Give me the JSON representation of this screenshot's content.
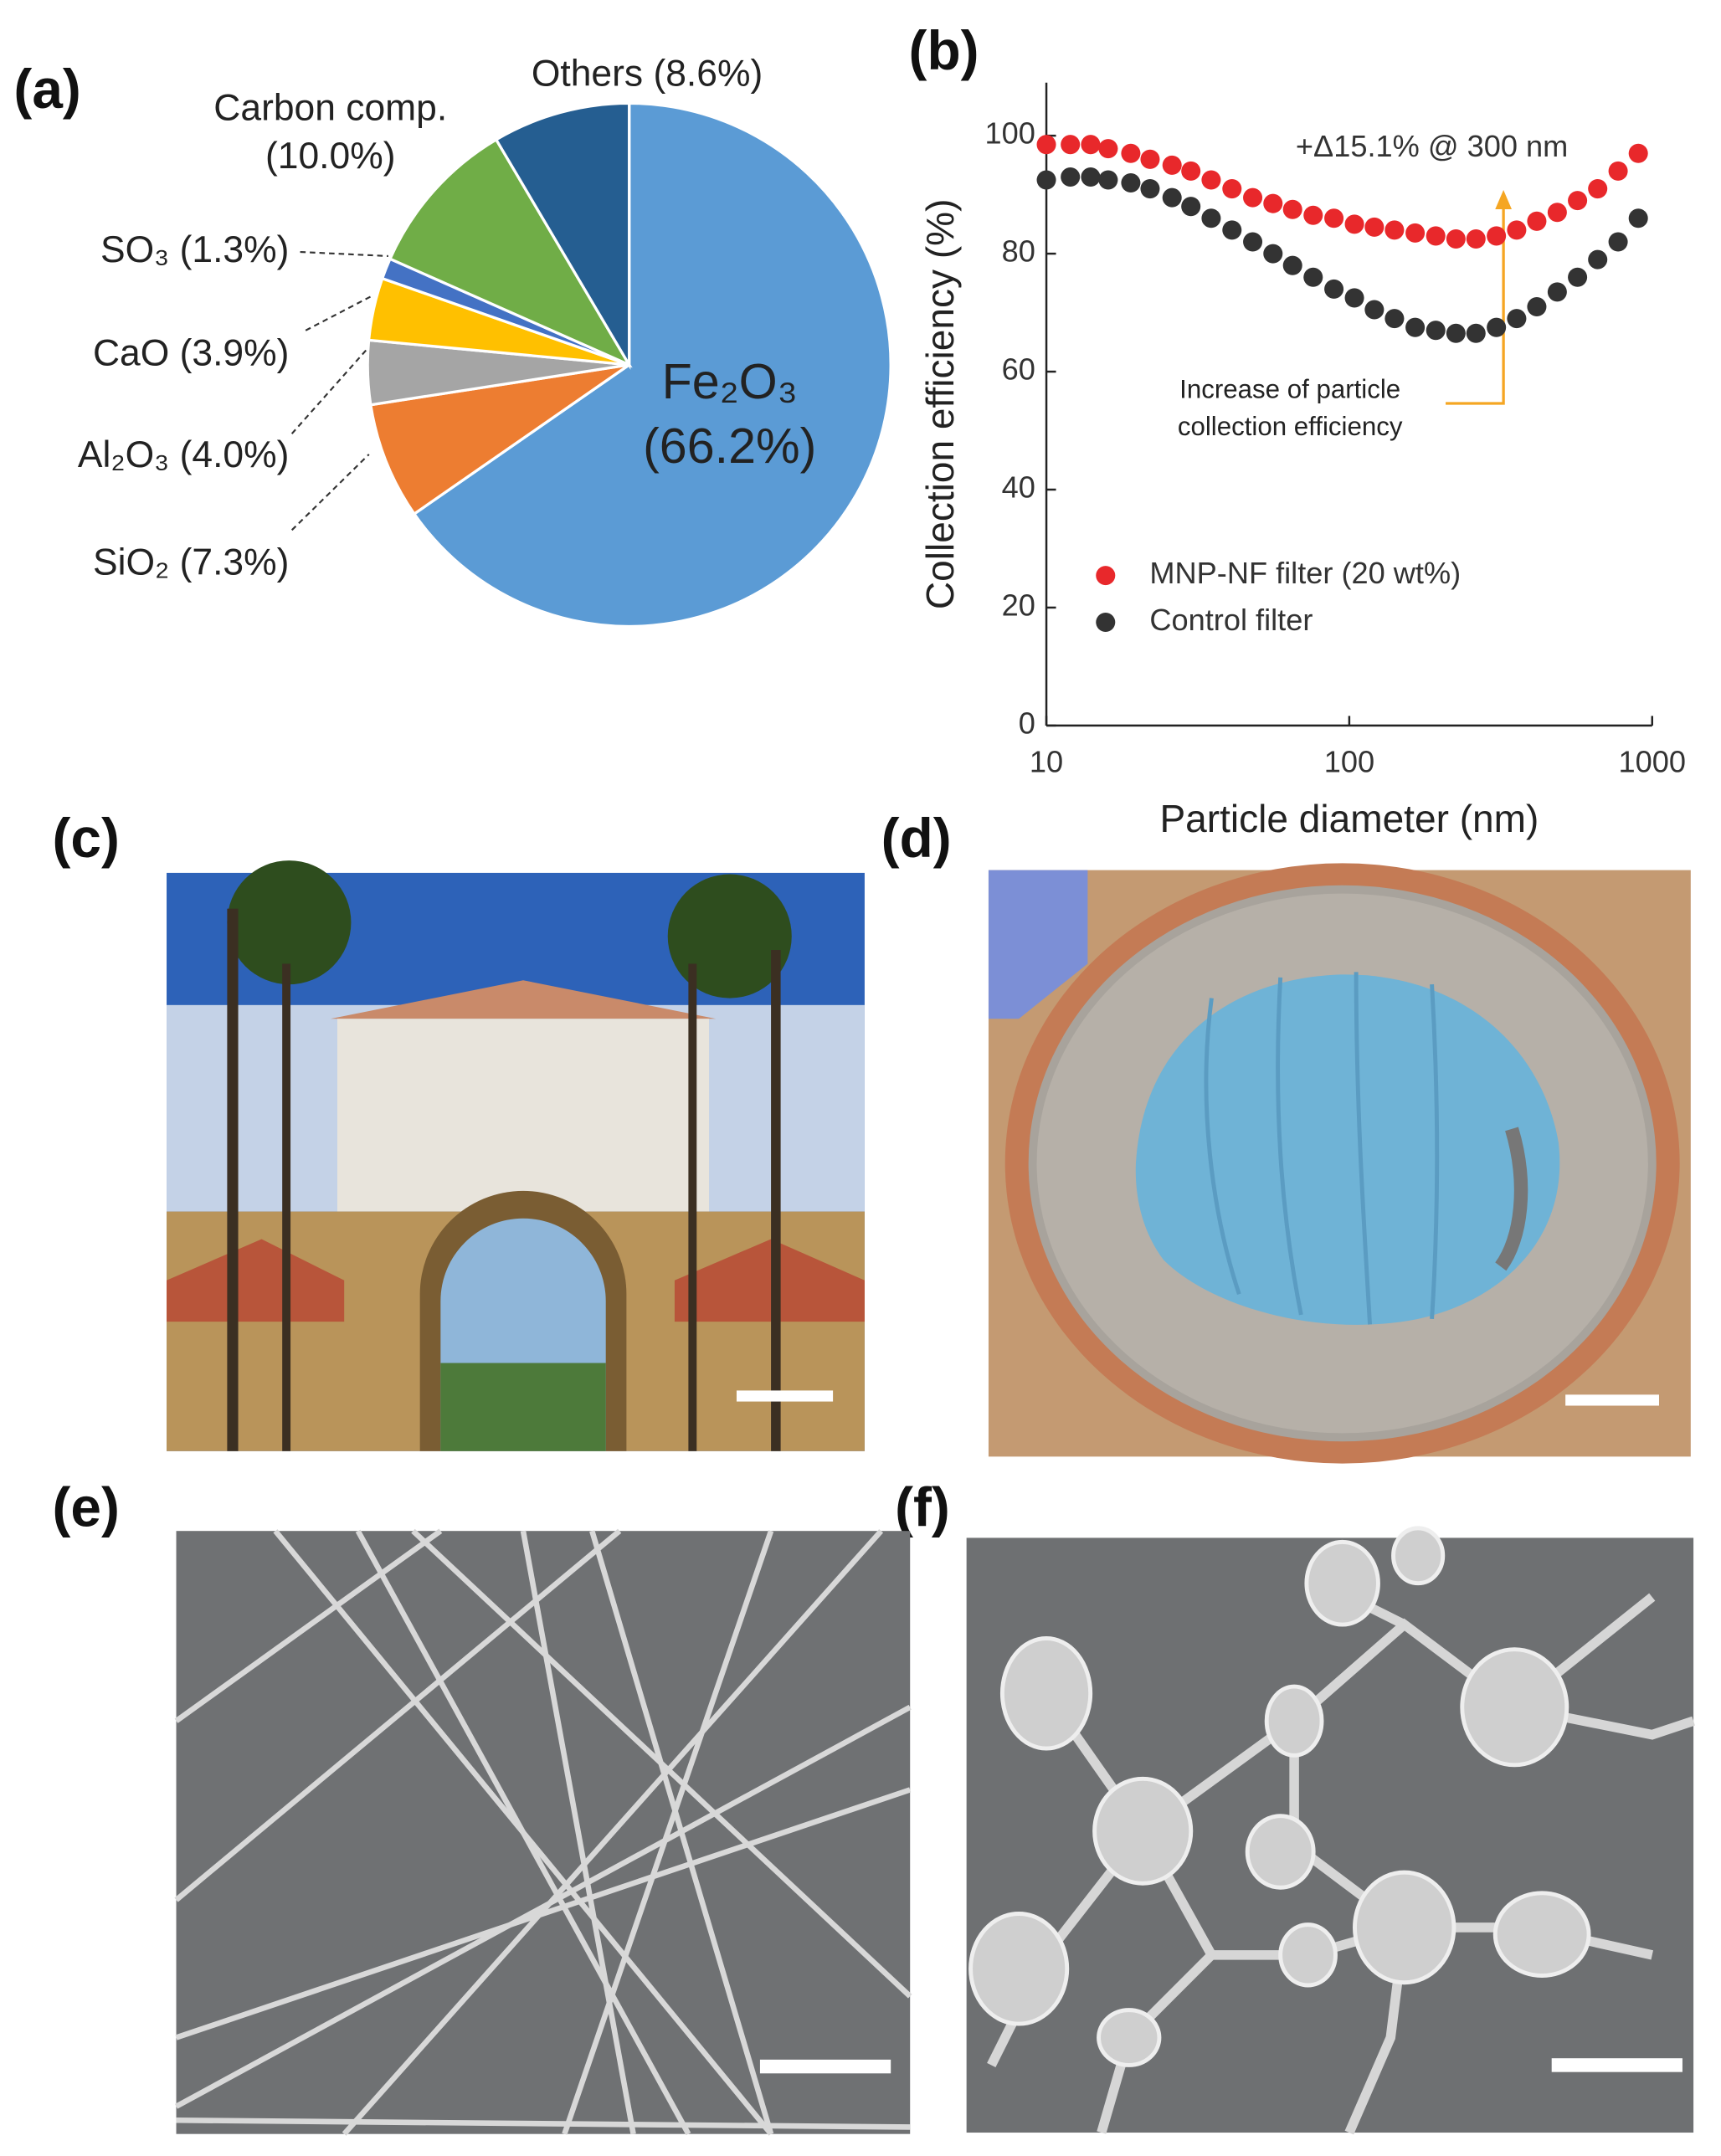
{
  "panel_labels": [
    "(a)",
    "(b)",
    "(c)",
    "(d)",
    "(e)",
    "(f)"
  ],
  "chart_data": [
    {
      "type": "pie",
      "labels": [
        "Fe₂O₃",
        "SiO₂",
        "Al₂O₃",
        "CaO",
        "SO₃",
        "Carbon comp.",
        "Others"
      ],
      "values": [
        66.2,
        7.3,
        4.0,
        3.9,
        1.3,
        10.0,
        8.6
      ],
      "value_labels": [
        "(66.2%)",
        "(7.3%)",
        "(4.0%)",
        "(3.9%)",
        "(1.3%)",
        "(10.0%)",
        "(8.6%)"
      ],
      "colors": [
        "#5b9bd5",
        "#ed7d31",
        "#a5a5a5",
        "#ffc000",
        "#4472c4",
        "#70ad47",
        "#255e91"
      ]
    },
    {
      "type": "scatter",
      "xlabel": "Particle diameter (nm)",
      "ylabel": "Collection efficiency (%)",
      "x": [
        10,
        12,
        14,
        16,
        19,
        22,
        26,
        30,
        35,
        41,
        48,
        56,
        65,
        76,
        89,
        104,
        121,
        141,
        165,
        193,
        225,
        262,
        306,
        357,
        416,
        486,
        567,
        661,
        772,
        900
      ],
      "series": [
        {
          "name": "MNP-NF filter (20 wt%)",
          "color": "#e8282b",
          "values": [
            98.5,
            98.5,
            98.5,
            97.8,
            97,
            96,
            95,
            94,
            92.5,
            91,
            89.5,
            88.5,
            87.5,
            86.5,
            86,
            85,
            84.5,
            84,
            83.5,
            83,
            82.5,
            82.5,
            83,
            84,
            85.5,
            87,
            89,
            91,
            94,
            97
          ]
        },
        {
          "name": "Control filter",
          "color": "#333333",
          "values": [
            92.5,
            93,
            93,
            92.5,
            92,
            91,
            89.5,
            88,
            86,
            84,
            82,
            80,
            78,
            76,
            74,
            72.5,
            70.5,
            69,
            67.5,
            67,
            66.5,
            66.5,
            67.5,
            69,
            71,
            73.5,
            76,
            79,
            82,
            86
          ]
        }
      ],
      "xlim": [
        10,
        1000
      ],
      "xticks": [
        10,
        100,
        1000
      ],
      "xscale": "log",
      "ylim": [
        0,
        109
      ],
      "yticks": [
        0,
        20,
        40,
        60,
        80,
        100
      ],
      "annotations": [
        "+Δ15.1% @ 300 nm",
        "Increase of particle",
        "collection efficiency"
      ],
      "legend": "lower-left"
    }
  ]
}
